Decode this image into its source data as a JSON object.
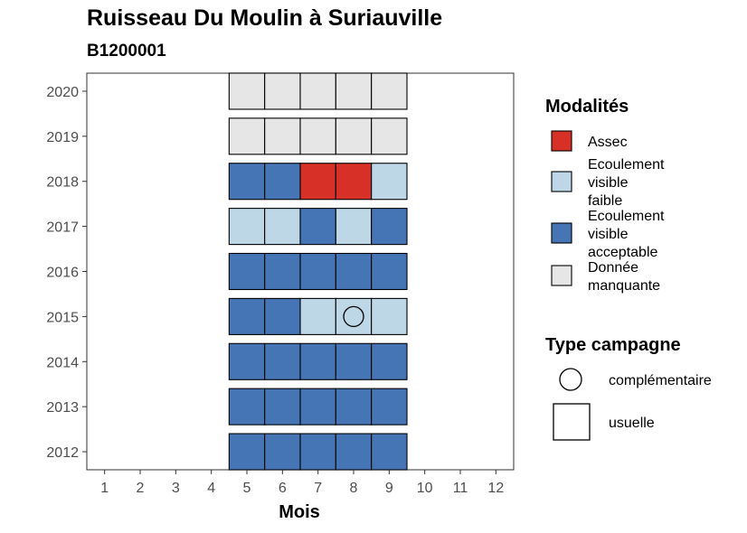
{
  "chart_data": {
    "type": "heatmap",
    "title": "Ruisseau Du Moulin à Suriauville",
    "subtitle": "B1200001",
    "xlabel": "Mois",
    "ylabel": "",
    "x_ticks": [
      1,
      2,
      3,
      4,
      5,
      6,
      7,
      8,
      9,
      10,
      11,
      12
    ],
    "y_ticks": [
      2012,
      2013,
      2014,
      2015,
      2016,
      2017,
      2018,
      2019,
      2020
    ],
    "xlim": [
      0.5,
      12.5
    ],
    "ylim": [
      2011.6,
      2020.4
    ],
    "grid": false,
    "legend_position": "right",
    "categories": [
      {
        "key": "assec",
        "label": "Assec",
        "color": "#d73027"
      },
      {
        "key": "faible",
        "label": "Ecoulement visible faible",
        "label_lines": [
          "Ecoulement",
          "visible",
          "faible"
        ],
        "color": "#bdd7e7"
      },
      {
        "key": "acceptable",
        "label": "Ecoulement visible acceptable",
        "label_lines": [
          "Ecoulement",
          "visible",
          "acceptable"
        ],
        "color": "#4575b4"
      },
      {
        "key": "manquante",
        "label": "Donnée manquante",
        "label_lines": [
          "Donnée",
          "manquante"
        ],
        "color": "#e6e6e6"
      }
    ],
    "campaign_types": [
      {
        "key": "complementaire",
        "label": "complémentaire",
        "shape": "circle"
      },
      {
        "key": "usuelle",
        "label": "usuelle",
        "shape": "square"
      }
    ],
    "legend_titles": {
      "modalites": "Modalités",
      "campagne": "Type campagne"
    },
    "cells": [
      {
        "year": 2012,
        "month": 5,
        "value": "acceptable",
        "campaign": "usuelle"
      },
      {
        "year": 2012,
        "month": 6,
        "value": "acceptable",
        "campaign": "usuelle"
      },
      {
        "year": 2012,
        "month": 7,
        "value": "acceptable",
        "campaign": "usuelle"
      },
      {
        "year": 2012,
        "month": 8,
        "value": "acceptable",
        "campaign": "usuelle"
      },
      {
        "year": 2012,
        "month": 9,
        "value": "acceptable",
        "campaign": "usuelle"
      },
      {
        "year": 2013,
        "month": 5,
        "value": "acceptable",
        "campaign": "usuelle"
      },
      {
        "year": 2013,
        "month": 6,
        "value": "acceptable",
        "campaign": "usuelle"
      },
      {
        "year": 2013,
        "month": 7,
        "value": "acceptable",
        "campaign": "usuelle"
      },
      {
        "year": 2013,
        "month": 8,
        "value": "acceptable",
        "campaign": "usuelle"
      },
      {
        "year": 2013,
        "month": 9,
        "value": "acceptable",
        "campaign": "usuelle"
      },
      {
        "year": 2014,
        "month": 5,
        "value": "acceptable",
        "campaign": "usuelle"
      },
      {
        "year": 2014,
        "month": 6,
        "value": "acceptable",
        "campaign": "usuelle"
      },
      {
        "year": 2014,
        "month": 7,
        "value": "acceptable",
        "campaign": "usuelle"
      },
      {
        "year": 2014,
        "month": 8,
        "value": "acceptable",
        "campaign": "usuelle"
      },
      {
        "year": 2014,
        "month": 9,
        "value": "acceptable",
        "campaign": "usuelle"
      },
      {
        "year": 2015,
        "month": 5,
        "value": "acceptable",
        "campaign": "usuelle"
      },
      {
        "year": 2015,
        "month": 6,
        "value": "acceptable",
        "campaign": "usuelle"
      },
      {
        "year": 2015,
        "month": 7,
        "value": "faible",
        "campaign": "usuelle"
      },
      {
        "year": 2015,
        "month": 8,
        "value": "faible",
        "campaign": "complementaire"
      },
      {
        "year": 2015,
        "month": 9,
        "value": "faible",
        "campaign": "usuelle"
      },
      {
        "year": 2016,
        "month": 5,
        "value": "acceptable",
        "campaign": "usuelle"
      },
      {
        "year": 2016,
        "month": 6,
        "value": "acceptable",
        "campaign": "usuelle"
      },
      {
        "year": 2016,
        "month": 7,
        "value": "acceptable",
        "campaign": "usuelle"
      },
      {
        "year": 2016,
        "month": 8,
        "value": "acceptable",
        "campaign": "usuelle"
      },
      {
        "year": 2016,
        "month": 9,
        "value": "acceptable",
        "campaign": "usuelle"
      },
      {
        "year": 2017,
        "month": 5,
        "value": "faible",
        "campaign": "usuelle"
      },
      {
        "year": 2017,
        "month": 6,
        "value": "faible",
        "campaign": "usuelle"
      },
      {
        "year": 2017,
        "month": 7,
        "value": "acceptable",
        "campaign": "usuelle"
      },
      {
        "year": 2017,
        "month": 8,
        "value": "faible",
        "campaign": "usuelle"
      },
      {
        "year": 2017,
        "month": 9,
        "value": "acceptable",
        "campaign": "usuelle"
      },
      {
        "year": 2018,
        "month": 5,
        "value": "acceptable",
        "campaign": "usuelle"
      },
      {
        "year": 2018,
        "month": 6,
        "value": "acceptable",
        "campaign": "usuelle"
      },
      {
        "year": 2018,
        "month": 7,
        "value": "assec",
        "campaign": "usuelle"
      },
      {
        "year": 2018,
        "month": 8,
        "value": "assec",
        "campaign": "usuelle"
      },
      {
        "year": 2018,
        "month": 9,
        "value": "faible",
        "campaign": "usuelle"
      },
      {
        "year": 2019,
        "month": 5,
        "value": "manquante",
        "campaign": "usuelle"
      },
      {
        "year": 2019,
        "month": 6,
        "value": "manquante",
        "campaign": "usuelle"
      },
      {
        "year": 2019,
        "month": 7,
        "value": "manquante",
        "campaign": "usuelle"
      },
      {
        "year": 2019,
        "month": 8,
        "value": "manquante",
        "campaign": "usuelle"
      },
      {
        "year": 2019,
        "month": 9,
        "value": "manquante",
        "campaign": "usuelle"
      },
      {
        "year": 2020,
        "month": 5,
        "value": "manquante",
        "campaign": "usuelle"
      },
      {
        "year": 2020,
        "month": 6,
        "value": "manquante",
        "campaign": "usuelle"
      },
      {
        "year": 2020,
        "month": 7,
        "value": "manquante",
        "campaign": "usuelle"
      },
      {
        "year": 2020,
        "month": 8,
        "value": "manquante",
        "campaign": "usuelle"
      },
      {
        "year": 2020,
        "month": 9,
        "value": "manquante",
        "campaign": "usuelle"
      }
    ]
  }
}
